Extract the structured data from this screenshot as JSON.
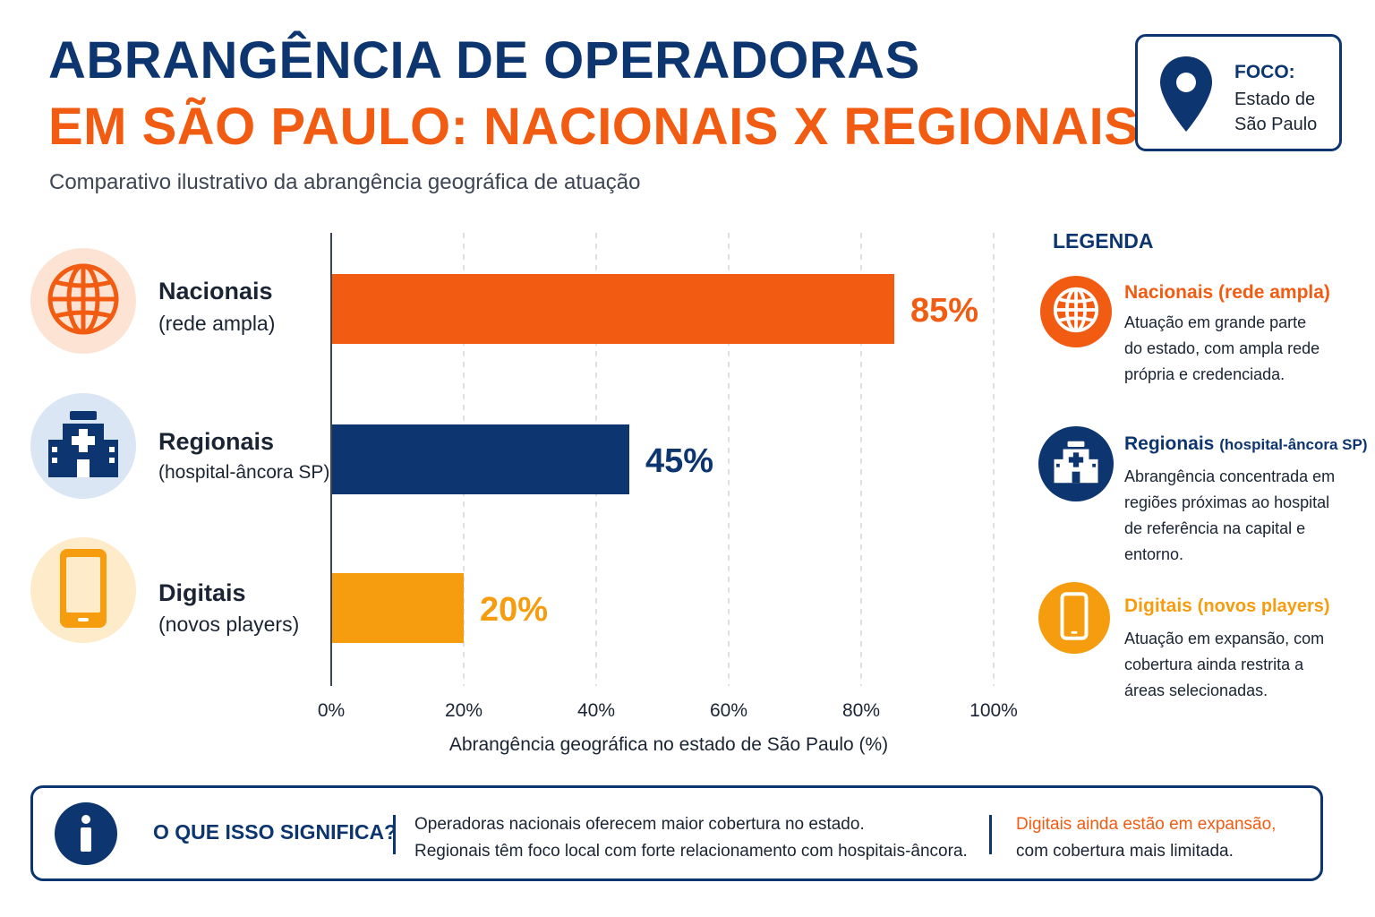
{
  "header": {
    "title_line1": "ABRANGÊNCIA DE OPERADORAS",
    "title_line2": "EM SÃO PAULO: NACIONAIS X REGIONAIS",
    "subtitle": "Comparativo ilustrativo da abrangência geográfica de atuação"
  },
  "focus": {
    "label": "FOCO:",
    "line1": "Estado de",
    "line2": "São Paulo",
    "icon": "map-pin-icon"
  },
  "categories": [
    {
      "name": "Nacionais",
      "sub": "(rede ampla)",
      "icon": "globe-icon"
    },
    {
      "name": "Regionais",
      "sub": "(hospital-âncora SP)",
      "icon": "hospital-icon"
    },
    {
      "name": "Digitais",
      "sub": "(novos players)",
      "icon": "smartphone-icon"
    }
  ],
  "chart_data": {
    "type": "bar",
    "orientation": "horizontal",
    "categories": [
      "Nacionais (rede ampla)",
      "Regionais (hospital-âncora SP)",
      "Digitais (novos players)"
    ],
    "values": [
      85,
      45,
      20
    ],
    "value_labels": [
      "85%",
      "45%",
      "20%"
    ],
    "colors": [
      "#f25c12",
      "#0d3570",
      "#f59c0f"
    ],
    "xlim": [
      0,
      100
    ],
    "xticks": [
      0,
      20,
      40,
      60,
      80,
      100
    ],
    "xtick_labels": [
      "0%",
      "20%",
      "40%",
      "60%",
      "80%",
      "100%"
    ],
    "xlabel": "Abrangência geográfica no estado de São Paulo (%)",
    "grid": "vertical dashed"
  },
  "legend": {
    "title": "LEGENDA",
    "items": [
      {
        "head": "Nacionais (rede ampla)",
        "head_small": "",
        "color": "#f25c12",
        "icon": "globe-icon",
        "lines": [
          "Atuação em grande parte",
          "do estado, com ampla rede",
          "própria e credenciada."
        ]
      },
      {
        "head": "Regionais",
        "head_small": "(hospital-âncora SP)",
        "color": "#0d3570",
        "icon": "hospital-icon",
        "lines": [
          "Abrangência concentrada em",
          "regiões próximas ao hospital",
          "de referência na capital e",
          "entorno."
        ]
      },
      {
        "head": "Digitais",
        "head_small": "(novos players)",
        "color": "#f59c0f",
        "icon": "smartphone-icon",
        "lines": [
          "Atuação em expansão, com",
          "cobertura ainda restrita a",
          "áreas selecionadas."
        ]
      }
    ]
  },
  "info": {
    "question": "O QUE ISSO SIGNIFICA?",
    "text1_line1": "Operadoras nacionais oferecem maior cobertura no estado.",
    "text1_line2": "Regionais têm foco local com forte relacionamento com hospitais-âncora.",
    "text2_line1": "Digitais ainda estão em expansão,",
    "text2_line2": "com cobertura mais limitada.",
    "icon": "info-icon"
  }
}
